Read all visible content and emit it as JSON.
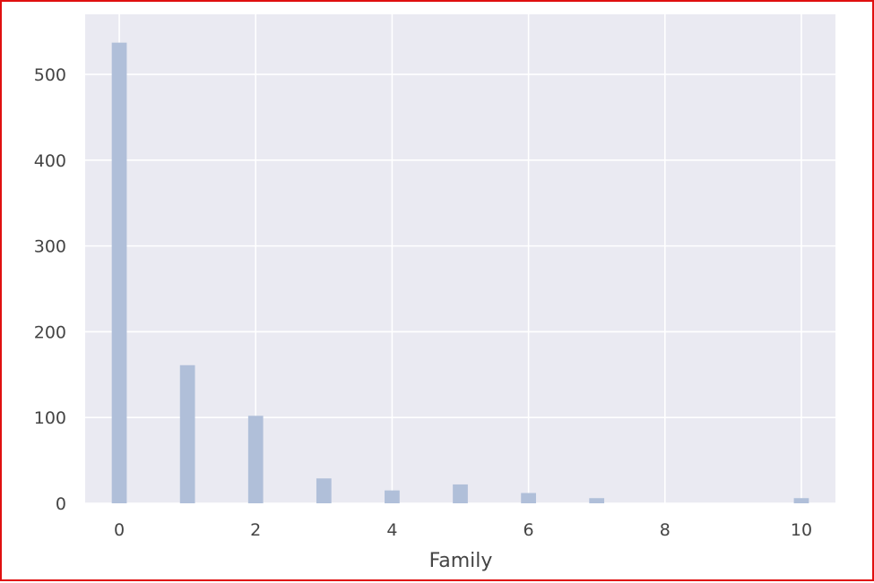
{
  "chart_data": {
    "type": "bar",
    "title": "",
    "xlabel": "Family",
    "ylabel": "",
    "xlim": [
      -0.5,
      10.5
    ],
    "ylim": [
      0,
      570
    ],
    "x_ticks": [
      0,
      2,
      4,
      6,
      8,
      10
    ],
    "y_ticks": [
      0,
      100,
      200,
      300,
      400,
      500
    ],
    "grid": true,
    "bar_color": "#b0bfd9",
    "background_color": "#eaeaf2",
    "series": [
      {
        "x": [
          0,
          1,
          2,
          3,
          4,
          5,
          6,
          7,
          10
        ],
        "values": [
          537,
          161,
          102,
          29,
          15,
          22,
          12,
          6,
          6
        ]
      }
    ]
  }
}
